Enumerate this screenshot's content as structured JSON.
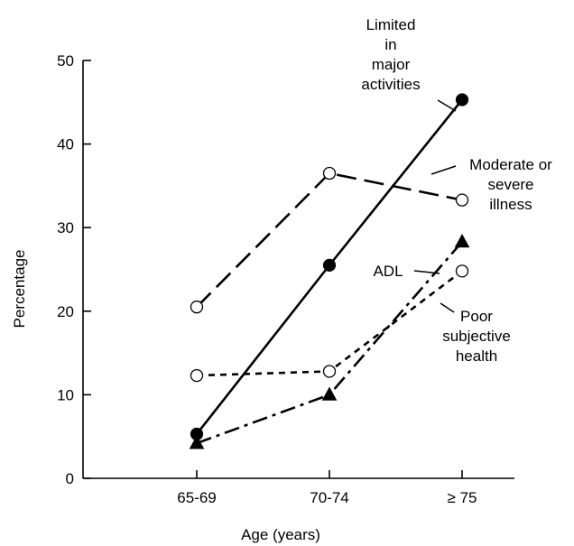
{
  "chart_data": {
    "type": "line",
    "title": "",
    "xlabel": "Age (years)",
    "ylabel": "Percentage",
    "categories": [
      "65-69",
      "70-74",
      "≥ 75"
    ],
    "ylim": [
      0,
      50
    ],
    "yticks": [
      0,
      10,
      20,
      30,
      40,
      50
    ],
    "grid": false,
    "legend": "direct labels beside each line",
    "series": [
      {
        "name": "Limited in major activities",
        "label_lines": [
          "Limited",
          "in",
          "major",
          "activities"
        ],
        "values": [
          5.3,
          25.5,
          45.3
        ],
        "line_style": "solid",
        "marker": "filled-circle",
        "color": "#000000"
      },
      {
        "name": "Moderate or severe illness",
        "label_lines": [
          "Moderate or",
          "severe",
          "illness"
        ],
        "values": [
          20.5,
          36.5,
          33.3
        ],
        "line_style": "long-dash",
        "marker": "open-circle",
        "color": "#000000"
      },
      {
        "name": "ADL",
        "label_lines": [
          "ADL"
        ],
        "values": [
          4.2,
          10.0,
          28.3
        ],
        "line_style": "dash-dot",
        "marker": "filled-triangle",
        "color": "#000000"
      },
      {
        "name": "Poor subjective health",
        "label_lines": [
          "Poor",
          "subjective",
          "health"
        ],
        "values": [
          12.3,
          12.8,
          24.8
        ],
        "line_style": "short-dash",
        "marker": "open-circle",
        "color": "#000000"
      }
    ]
  }
}
